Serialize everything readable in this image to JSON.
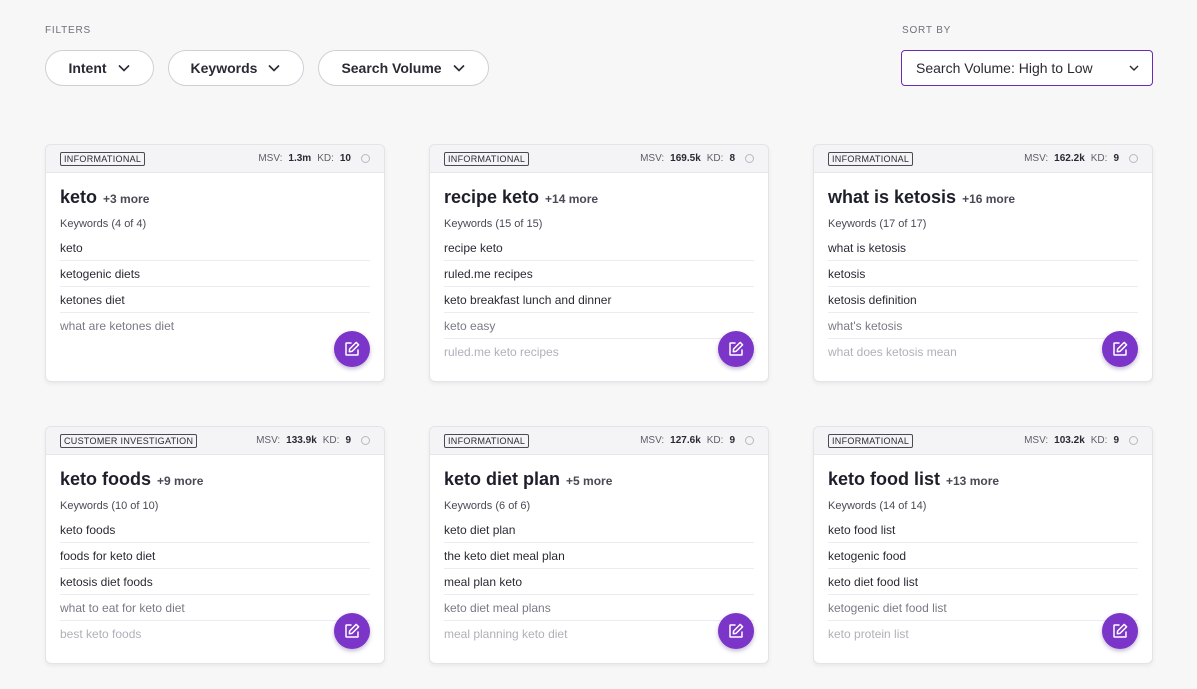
{
  "filters": {
    "label": "FILTERS",
    "buttons": [
      {
        "label": "Intent",
        "icon": "chevron-down-icon"
      },
      {
        "label": "Keywords",
        "icon": "chevron-down-icon"
      },
      {
        "label": "Search Volume",
        "icon": "chevron-down-icon"
      }
    ]
  },
  "sort": {
    "label": "SORT BY",
    "selected": "Search Volume: High to Low",
    "accent": "#6b2bb0"
  },
  "accent_color": "#7b35c8",
  "cards": [
    {
      "intent": "INFORMATIONAL",
      "msv_label": "MSV:",
      "msv": "1.3m",
      "kd_label": "KD:",
      "kd": "10",
      "title": "keto",
      "more": "+3 more",
      "keyword_count": "Keywords (4 of 4)",
      "keywords": [
        "keto",
        "ketogenic diets",
        "ketones diet",
        "what are ketones diet"
      ]
    },
    {
      "intent": "INFORMATIONAL",
      "msv_label": "MSV:",
      "msv": "169.5k",
      "kd_label": "KD:",
      "kd": "8",
      "title": "recipe keto",
      "more": "+14 more",
      "keyword_count": "Keywords (15 of 15)",
      "keywords": [
        "recipe keto",
        "ruled.me recipes",
        "keto breakfast lunch and dinner",
        "keto easy",
        "ruled.me keto recipes"
      ]
    },
    {
      "intent": "INFORMATIONAL",
      "msv_label": "MSV:",
      "msv": "162.2k",
      "kd_label": "KD:",
      "kd": "9",
      "title": "what is ketosis",
      "more": "+16 more",
      "keyword_count": "Keywords (17 of 17)",
      "keywords": [
        "what is ketosis",
        "ketosis",
        "ketosis definition",
        "what's ketosis",
        "what does ketosis mean"
      ]
    },
    {
      "intent": "CUSTOMER INVESTIGATION",
      "msv_label": "MSV:",
      "msv": "133.9k",
      "kd_label": "KD:",
      "kd": "9",
      "title": "keto foods",
      "more": "+9 more",
      "keyword_count": "Keywords (10 of 10)",
      "keywords": [
        "keto foods",
        "foods for keto diet",
        "ketosis diet foods",
        "what to eat for keto diet",
        "best keto foods"
      ]
    },
    {
      "intent": "INFORMATIONAL",
      "msv_label": "MSV:",
      "msv": "127.6k",
      "kd_label": "KD:",
      "kd": "9",
      "title": "keto diet plan",
      "more": "+5 more",
      "keyword_count": "Keywords (6 of 6)",
      "keywords": [
        "keto diet plan",
        "the keto diet meal plan",
        "meal plan keto",
        "keto diet meal plans",
        "meal planning keto diet"
      ]
    },
    {
      "intent": "INFORMATIONAL",
      "msv_label": "MSV:",
      "msv": "103.2k",
      "kd_label": "KD:",
      "kd": "9",
      "title": "keto food list",
      "more": "+13 more",
      "keyword_count": "Keywords (14 of 14)",
      "keywords": [
        "keto food list",
        "ketogenic food",
        "keto diet food list",
        "ketogenic diet food list",
        "keto protein list"
      ]
    }
  ]
}
